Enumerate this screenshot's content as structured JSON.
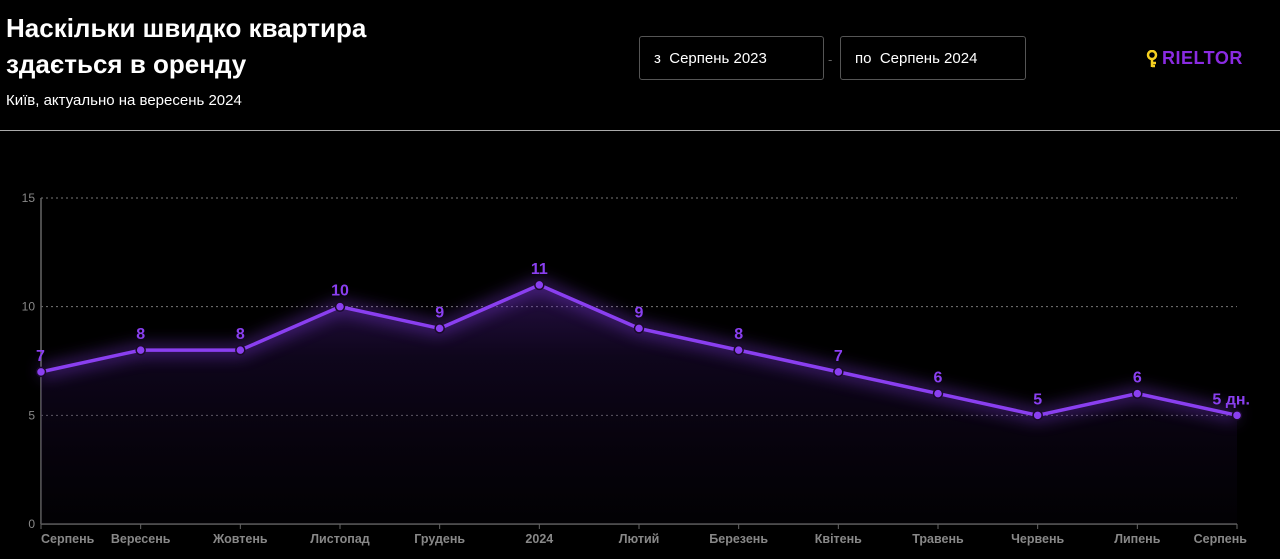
{
  "header": {
    "title": "Наскільки швидко квартира здається в оренду",
    "subtitle": "Київ, актуально на вересень 2024"
  },
  "filters": {
    "from_prefix": "з",
    "from_value": "Серпень 2023",
    "separator": "-",
    "to_prefix": "по",
    "to_value": "Серпень 2024"
  },
  "logo": {
    "text": "RIELTOR",
    "icon": "key-icon",
    "icon_color": "#f5d020",
    "color": "#8a2be2"
  },
  "chart_data": {
    "type": "line",
    "title": "Наскільки швидко квартира здається в оренду",
    "categories": [
      "Серпень",
      "Вересень",
      "Жовтень",
      "Листопад",
      "Грудень",
      "2024",
      "Лютий",
      "Березень",
      "Квітень",
      "Травень",
      "Червень",
      "Липень",
      "Серпень"
    ],
    "values": [
      7,
      8,
      8,
      10,
      9,
      11,
      9,
      8,
      7,
      6,
      5,
      6,
      5
    ],
    "labels": [
      "7",
      "8",
      "8",
      "10",
      "9",
      "11",
      "9",
      "8",
      "7",
      "6",
      "5",
      "6",
      "5 дн."
    ],
    "ylim": [
      0,
      15
    ],
    "yticks": [
      "0",
      "5",
      "10",
      "15"
    ],
    "grid": true,
    "color": "#8a3ff0"
  }
}
